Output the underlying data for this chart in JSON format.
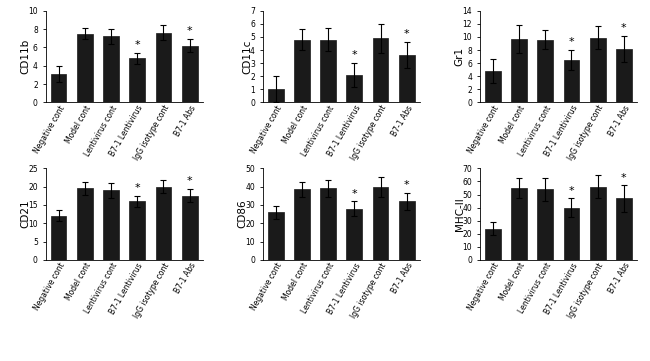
{
  "categories": [
    "Negative cont",
    "Model cont",
    "Lentivirus cont",
    "B7-1 Lentivirus",
    "IgG isotype cont",
    "B7-1 Abs"
  ],
  "subplots": [
    {
      "ylabel": "CD11b",
      "ylim": [
        0,
        10
      ],
      "yticks": [
        0,
        2,
        4,
        6,
        8,
        10
      ],
      "values": [
        3.1,
        7.5,
        7.2,
        4.8,
        7.6,
        6.2
      ],
      "errors": [
        0.9,
        0.6,
        0.8,
        0.6,
        0.8,
        0.7
      ],
      "star": [
        false,
        false,
        false,
        true,
        false,
        true
      ]
    },
    {
      "ylabel": "CD11c",
      "ylim": [
        0,
        7
      ],
      "yticks": [
        0,
        1,
        2,
        3,
        4,
        5,
        6,
        7
      ],
      "values": [
        1.0,
        4.8,
        4.8,
        2.1,
        4.9,
        3.6
      ],
      "errors": [
        1.0,
        0.8,
        0.9,
        0.9,
        1.1,
        1.0
      ],
      "star": [
        false,
        false,
        false,
        true,
        false,
        true
      ]
    },
    {
      "ylabel": "Gr1",
      "ylim": [
        0,
        14
      ],
      "yticks": [
        0,
        2,
        4,
        6,
        8,
        10,
        12,
        14
      ],
      "values": [
        4.8,
        9.7,
        9.6,
        6.5,
        9.9,
        8.2
      ],
      "errors": [
        1.8,
        2.1,
        1.5,
        1.5,
        1.8,
        2.0
      ],
      "star": [
        false,
        false,
        false,
        true,
        false,
        true
      ]
    },
    {
      "ylabel": "CD21",
      "ylim": [
        0,
        25
      ],
      "yticks": [
        0,
        5,
        10,
        15,
        20,
        25
      ],
      "values": [
        12.0,
        19.5,
        19.0,
        16.0,
        20.0,
        17.5
      ],
      "errors": [
        1.5,
        1.8,
        2.0,
        1.5,
        1.8,
        1.8
      ],
      "star": [
        false,
        false,
        false,
        true,
        false,
        true
      ]
    },
    {
      "ylabel": "CD86",
      "ylim": [
        0,
        50
      ],
      "yticks": [
        0,
        10,
        20,
        30,
        40,
        50
      ],
      "values": [
        26.0,
        38.5,
        39.0,
        28.0,
        40.0,
        32.0
      ],
      "errors": [
        3.5,
        4.0,
        4.5,
        4.0,
        5.5,
        4.5
      ],
      "star": [
        false,
        false,
        false,
        true,
        false,
        true
      ]
    },
    {
      "ylabel": "MHC-II",
      "ylim": [
        0,
        70
      ],
      "yticks": [
        0,
        10,
        20,
        30,
        40,
        50,
        60,
        70
      ],
      "values": [
        24.0,
        55.0,
        54.0,
        40.0,
        56.0,
        47.0
      ],
      "errors": [
        5.0,
        8.0,
        9.0,
        7.0,
        9.0,
        10.0
      ],
      "star": [
        false,
        false,
        false,
        true,
        false,
        true
      ]
    }
  ],
  "bar_color": "#1a1a1a",
  "star_color": "#000000",
  "background_color": "#ffffff",
  "fontsize_tick": 5.5,
  "fontsize_ylabel": 7.5,
  "fontsize_star": 8
}
